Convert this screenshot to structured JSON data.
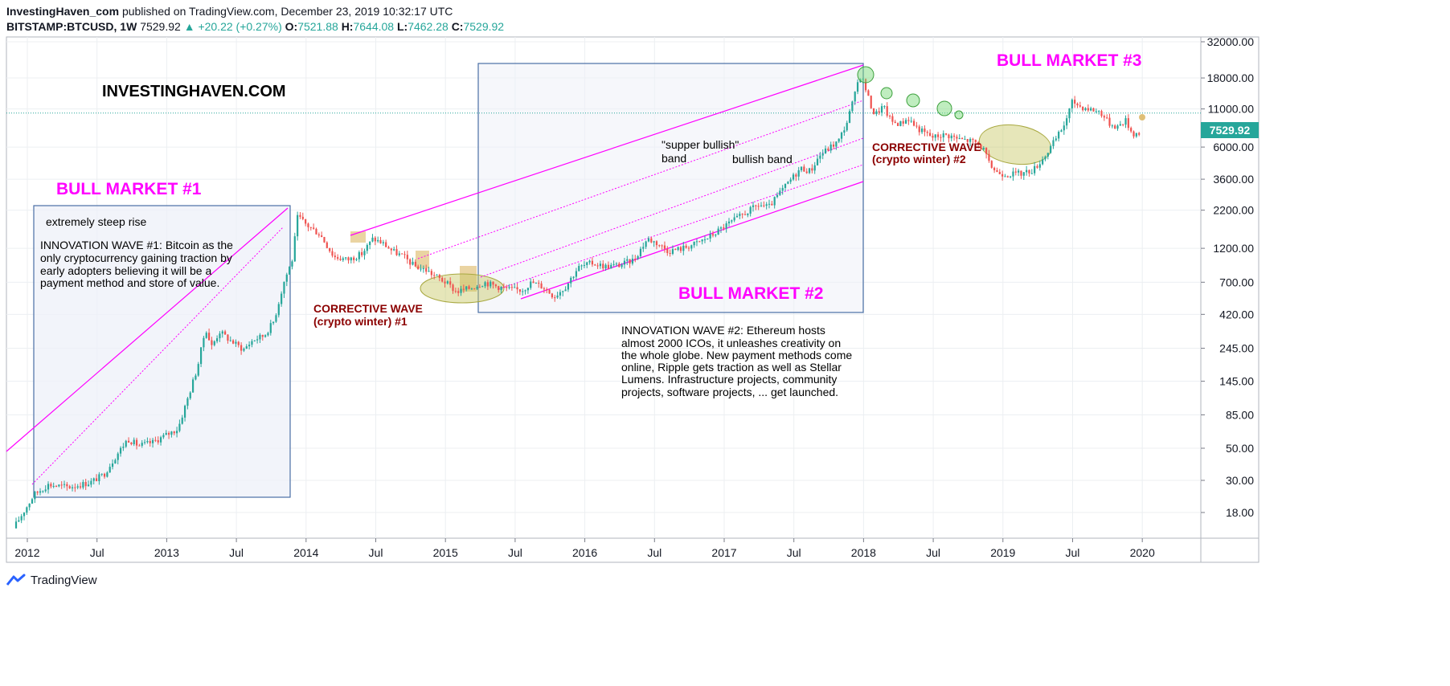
{
  "header": {
    "publisher": "InvestingHaven_com",
    "published_text": "published on TradingView.com, December 23, 2019 10:32:17 UTC",
    "symbol": "BITSTAMP:BTCUSD, 1W",
    "last": "7529.92",
    "change": "+20.22 (+0.27%)",
    "o_label": "O:",
    "o": "7521.88",
    "h_label": "H:",
    "h": "7644.08",
    "l_label": "L:",
    "l": "7462.28",
    "c_label": "C:",
    "c": "7529.92"
  },
  "footer": {
    "brand": "TradingView"
  },
  "colors": {
    "up": "#26a69a",
    "down": "#ef5350",
    "bull": "#ff00ff",
    "corrective": "#8b0000",
    "box": "#4a6fa5",
    "ellipse": "#c8c864"
  },
  "chart_data": {
    "type": "candlestick",
    "y_scale": "log",
    "ylim": [
      13,
      36000
    ],
    "x_ticks": [
      "2012",
      "Jul",
      "2013",
      "Jul",
      "2014",
      "Jul",
      "2015",
      "Jul",
      "2016",
      "Jul",
      "2017",
      "Jul",
      "2018",
      "Jul",
      "2019",
      "Jul",
      "2020"
    ],
    "y_ticks": [
      "32000.00",
      "18000.00",
      "11000.00",
      "6000.00",
      "3600.00",
      "2200.00",
      "1200.00",
      "700.00",
      "420.00",
      "245.00",
      "145.00",
      "85.00",
      "50.00",
      "30.00",
      "18.00"
    ],
    "y_tick_values": [
      32000,
      18000,
      11000,
      6000,
      3600,
      2200,
      1200,
      700,
      420,
      245,
      145,
      85,
      50,
      30,
      18
    ],
    "last_price_label": "7529.92",
    "last_price": 7529.92,
    "annotations": {
      "site": "INVESTINGHAVEN.COM",
      "bull1": "BULL MARKET #1",
      "bull2": "BULL MARKET #2",
      "bull3": "BULL MARKET #3",
      "steep": "extremely steep rise",
      "innov1": [
        "INNOVATION WAVE #1: Bitcoin as the",
        "only cryptocurrency gaining traction by",
        "early adopters believing it will be a",
        "payment method and store of value."
      ],
      "corr1": [
        "CORRECTIVE WAVE",
        "(crypto winter) #1"
      ],
      "corr2": [
        "CORRECTIVE WAVE",
        "(crypto winter) #2"
      ],
      "super": [
        "\"supper bullish\"",
        "band"
      ],
      "bullish_band": "bullish band",
      "innov2": [
        "INNOVATION WAVE #2: Ethereum hosts",
        "almost 2000 ICOs, it unleashes creativity on",
        "the whole globe. New payment methods come",
        "online, Ripple gets traction as well as Stellar",
        "Lumens. Infrastructure projects, community",
        "projects, software projects, ... get launched."
      ]
    },
    "price_path": [
      [
        2011.9,
        14
      ],
      [
        2011.97,
        18
      ],
      [
        2012.05,
        24
      ],
      [
        2012.15,
        28
      ],
      [
        2012.3,
        27
      ],
      [
        2012.45,
        29
      ],
      [
        2012.55,
        33
      ],
      [
        2012.62,
        42
      ],
      [
        2012.72,
        58
      ],
      [
        2012.8,
        52
      ],
      [
        2012.9,
        55
      ],
      [
        2013.0,
        62
      ],
      [
        2013.08,
        68
      ],
      [
        2013.15,
        110
      ],
      [
        2013.22,
        180
      ],
      [
        2013.28,
        340
      ],
      [
        2013.32,
        250
      ],
      [
        2013.38,
        320
      ],
      [
        2013.45,
        280
      ],
      [
        2013.5,
        260
      ],
      [
        2013.55,
        240
      ],
      [
        2013.62,
        280
      ],
      [
        2013.7,
        300
      ],
      [
        2013.77,
        380
      ],
      [
        2013.84,
        700
      ],
      [
        2013.9,
        1000
      ],
      [
        2013.94,
        2000
      ],
      [
        2014.0,
        1750
      ],
      [
        2014.1,
        1500
      ],
      [
        2014.2,
        1050
      ],
      [
        2014.3,
        1000
      ],
      [
        2014.4,
        1100
      ],
      [
        2014.48,
        1400
      ],
      [
        2014.55,
        1300
      ],
      [
        2014.62,
        1150
      ],
      [
        2014.7,
        1050
      ],
      [
        2014.78,
        900
      ],
      [
        2014.86,
        850
      ],
      [
        2014.92,
        780
      ],
      [
        2015.0,
        700
      ],
      [
        2015.08,
        600
      ],
      [
        2015.18,
        640
      ],
      [
        2015.28,
        700
      ],
      [
        2015.38,
        650
      ],
      [
        2015.48,
        620
      ],
      [
        2015.55,
        620
      ],
      [
        2015.62,
        700
      ],
      [
        2015.7,
        650
      ],
      [
        2015.78,
        560
      ],
      [
        2015.86,
        650
      ],
      [
        2015.95,
        880
      ],
      [
        2016.05,
        950
      ],
      [
        2016.15,
        900
      ],
      [
        2016.25,
        920
      ],
      [
        2016.35,
        1000
      ],
      [
        2016.45,
        1400
      ],
      [
        2016.52,
        1300
      ],
      [
        2016.6,
        1150
      ],
      [
        2016.7,
        1200
      ],
      [
        2016.8,
        1300
      ],
      [
        2016.9,
        1450
      ],
      [
        2017.0,
        1700
      ],
      [
        2017.08,
        1900
      ],
      [
        2017.15,
        2100
      ],
      [
        2017.25,
        2400
      ],
      [
        2017.32,
        2300
      ],
      [
        2017.4,
        2900
      ],
      [
        2017.48,
        3600
      ],
      [
        2017.55,
        4300
      ],
      [
        2017.62,
        4100
      ],
      [
        2017.68,
        5200
      ],
      [
        2017.75,
        5900
      ],
      [
        2017.82,
        6600
      ],
      [
        2017.88,
        8900
      ],
      [
        2017.94,
        14000
      ],
      [
        2017.97,
        19000
      ],
      [
        2018.0,
        17000
      ],
      [
        2018.04,
        12500
      ],
      [
        2018.08,
        10000
      ],
      [
        2018.14,
        11500
      ],
      [
        2018.2,
        9000
      ],
      [
        2018.26,
        8700
      ],
      [
        2018.32,
        9500
      ],
      [
        2018.38,
        8200
      ],
      [
        2018.44,
        7500
      ],
      [
        2018.5,
        7000
      ],
      [
        2018.56,
        7300
      ],
      [
        2018.62,
        7200
      ],
      [
        2018.68,
        6800
      ],
      [
        2018.74,
        6700
      ],
      [
        2018.8,
        6500
      ],
      [
        2018.86,
        5800
      ],
      [
        2018.9,
        4600
      ],
      [
        2018.96,
        4000
      ],
      [
        2019.04,
        3900
      ],
      [
        2019.14,
        3950
      ],
      [
        2019.22,
        4200
      ],
      [
        2019.3,
        5200
      ],
      [
        2019.38,
        6800
      ],
      [
        2019.44,
        8600
      ],
      [
        2019.5,
        12500
      ],
      [
        2019.55,
        11500
      ],
      [
        2019.62,
        11000
      ],
      [
        2019.7,
        10500
      ],
      [
        2019.76,
        8800
      ],
      [
        2019.82,
        8300
      ],
      [
        2019.88,
        9200
      ],
      [
        2019.93,
        7400
      ],
      [
        2019.98,
        7530
      ]
    ]
  }
}
